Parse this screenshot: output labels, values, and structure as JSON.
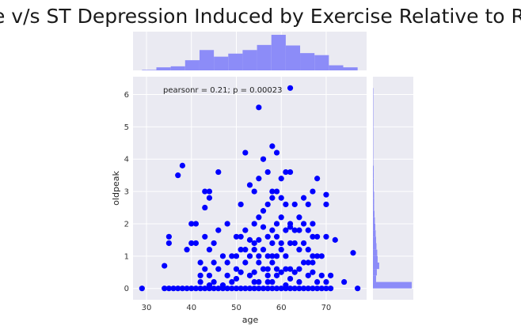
{
  "chart_data": {
    "type": "scatter",
    "title": "Age v/s ST Depression Induced by Exercise Relative to Rest",
    "xlabel": "age",
    "ylabel": "oldpeak",
    "xlim": [
      27,
      79
    ],
    "ylim": [
      -0.35,
      6.55
    ],
    "x_ticks": [
      30,
      40,
      50,
      60,
      70
    ],
    "y_ticks": [
      0,
      1,
      2,
      3,
      4,
      5,
      6
    ],
    "grid": true,
    "annotation": "pearsonr = 0.21; p = 0.00023",
    "colors": {
      "points": "#0000ff",
      "hist_fill": "#8c8cf8",
      "hist_edge": "#6a6af0",
      "panel_bg": "#eaeaf2",
      "grid": "#ffffff"
    },
    "points": [
      [
        29,
        0
      ],
      [
        34,
        0
      ],
      [
        35,
        0
      ],
      [
        36,
        0
      ],
      [
        37,
        0
      ],
      [
        38,
        0
      ],
      [
        39,
        0
      ],
      [
        40,
        0
      ],
      [
        41,
        0
      ],
      [
        42,
        0
      ],
      [
        43,
        0
      ],
      [
        44,
        0
      ],
      [
        45,
        0
      ],
      [
        46,
        0
      ],
      [
        47,
        0
      ],
      [
        48,
        0
      ],
      [
        49,
        0
      ],
      [
        50,
        0
      ],
      [
        51,
        0
      ],
      [
        52,
        0
      ],
      [
        53,
        0
      ],
      [
        54,
        0
      ],
      [
        55,
        0
      ],
      [
        56,
        0
      ],
      [
        57,
        0
      ],
      [
        58,
        0
      ],
      [
        59,
        0
      ],
      [
        60,
        0
      ],
      [
        61,
        0
      ],
      [
        62,
        0
      ],
      [
        63,
        0
      ],
      [
        64,
        0
      ],
      [
        65,
        0
      ],
      [
        66,
        0
      ],
      [
        67,
        0
      ],
      [
        68,
        0
      ],
      [
        69,
        0
      ],
      [
        70,
        0
      ],
      [
        71,
        0
      ],
      [
        74,
        0.2
      ],
      [
        77,
        0
      ],
      [
        34,
        0.7
      ],
      [
        35,
        1.4
      ],
      [
        35,
        1.6
      ],
      [
        37,
        3.5
      ],
      [
        38,
        3.8
      ],
      [
        39,
        1.2
      ],
      [
        40,
        2
      ],
      [
        40,
        1.4
      ],
      [
        41,
        2
      ],
      [
        41,
        1.4
      ],
      [
        42,
        0.8
      ],
      [
        42,
        0.4
      ],
      [
        42,
        0.2
      ],
      [
        43,
        3
      ],
      [
        43,
        2.5
      ],
      [
        43,
        1.6
      ],
      [
        43,
        0.6
      ],
      [
        44,
        2.8
      ],
      [
        44,
        3
      ],
      [
        44,
        1.2
      ],
      [
        44,
        0.4
      ],
      [
        44,
        0.1
      ],
      [
        45,
        1.4
      ],
      [
        45,
        0.8
      ],
      [
        45,
        0.2
      ],
      [
        46,
        3.6
      ],
      [
        46,
        1.8
      ],
      [
        46,
        0.6
      ],
      [
        47,
        1
      ],
      [
        47,
        0.1
      ],
      [
        48,
        2
      ],
      [
        48,
        0.8
      ],
      [
        48,
        0.4
      ],
      [
        49,
        1
      ],
      [
        49,
        0.2
      ],
      [
        50,
        1.6
      ],
      [
        50,
        1
      ],
      [
        50,
        0.6
      ],
      [
        50,
        0.3
      ],
      [
        51,
        2.6
      ],
      [
        51,
        1.6
      ],
      [
        51,
        1.2
      ],
      [
        51,
        0.5
      ],
      [
        52,
        4.2
      ],
      [
        52,
        1.8
      ],
      [
        52,
        1.2
      ],
      [
        52,
        0.8
      ],
      [
        53,
        3.2
      ],
      [
        53,
        1.5
      ],
      [
        53,
        1
      ],
      [
        53,
        0.4
      ],
      [
        54,
        3
      ],
      [
        54,
        2
      ],
      [
        54,
        1.4
      ],
      [
        54,
        1.2
      ],
      [
        54,
        0.5
      ],
      [
        54,
        0.2
      ],
      [
        55,
        5.6
      ],
      [
        55,
        3.4
      ],
      [
        55,
        2.2
      ],
      [
        55,
        1.5
      ],
      [
        55,
        1
      ],
      [
        55,
        0.8
      ],
      [
        55,
        0.2
      ],
      [
        56,
        4
      ],
      [
        56,
        2.4
      ],
      [
        56,
        1.9
      ],
      [
        56,
        1.2
      ],
      [
        56,
        0.6
      ],
      [
        57,
        3.6
      ],
      [
        57,
        2.6
      ],
      [
        57,
        1.6
      ],
      [
        57,
        1
      ],
      [
        57,
        0.6
      ],
      [
        57,
        0.4
      ],
      [
        57,
        0.2
      ],
      [
        58,
        4.4
      ],
      [
        58,
        3
      ],
      [
        58,
        2.8
      ],
      [
        58,
        1.8
      ],
      [
        58,
        1.4
      ],
      [
        58,
        1
      ],
      [
        58,
        0.8
      ],
      [
        58,
        0.2
      ],
      [
        59,
        4.2
      ],
      [
        59,
        3
      ],
      [
        59,
        2
      ],
      [
        59,
        1.6
      ],
      [
        59,
        1
      ],
      [
        59,
        0.6
      ],
      [
        59,
        0.4
      ],
      [
        60,
        3.4
      ],
      [
        60,
        2.8
      ],
      [
        60,
        2.2
      ],
      [
        60,
        1.4
      ],
      [
        60,
        1.2
      ],
      [
        60,
        0.5
      ],
      [
        61,
        3.6
      ],
      [
        61,
        2.6
      ],
      [
        61,
        1.8
      ],
      [
        61,
        1
      ],
      [
        61,
        0.6
      ],
      [
        61,
        0.1
      ],
      [
        62,
        6.2
      ],
      [
        62,
        3.6
      ],
      [
        62,
        2
      ],
      [
        62,
        1.9
      ],
      [
        62,
        1.4
      ],
      [
        62,
        0.6
      ],
      [
        62,
        0.3
      ],
      [
        63,
        2.6
      ],
      [
        63,
        1.8
      ],
      [
        63,
        1.4
      ],
      [
        63,
        0.5
      ],
      [
        64,
        2.2
      ],
      [
        64,
        1.8
      ],
      [
        64,
        1.2
      ],
      [
        64,
        0.6
      ],
      [
        64,
        0.2
      ],
      [
        65,
        2.8
      ],
      [
        65,
        2
      ],
      [
        65,
        1.4
      ],
      [
        65,
        0.8
      ],
      [
        66,
        2.6
      ],
      [
        66,
        1.8
      ],
      [
        66,
        1.2
      ],
      [
        66,
        0.8
      ],
      [
        66,
        0.4
      ],
      [
        67,
        3
      ],
      [
        67,
        2
      ],
      [
        67,
        1.6
      ],
      [
        67,
        1
      ],
      [
        67,
        0.8
      ],
      [
        67,
        0.5
      ],
      [
        68,
        3.4
      ],
      [
        68,
        1.6
      ],
      [
        68,
        1
      ],
      [
        68,
        0.2
      ],
      [
        69,
        1
      ],
      [
        69,
        0.4
      ],
      [
        70,
        2.9
      ],
      [
        70,
        2.6
      ],
      [
        70,
        1.6
      ],
      [
        70,
        0.2
      ],
      [
        71,
        0.4
      ],
      [
        72,
        1.5
      ],
      [
        76,
        1.1
      ]
    ],
    "marginal_x": {
      "bin_edges": [
        29,
        32.2,
        35.4,
        38.6,
        41.8,
        45,
        48.2,
        51.4,
        54.6,
        57.8,
        61,
        64.2,
        67.4,
        70.6,
        73.8,
        77
      ],
      "counts": [
        1,
        6,
        8,
        20,
        40,
        27,
        33,
        40,
        50,
        70,
        49,
        34,
        30,
        10,
        6
      ]
    },
    "marginal_y": {
      "bin_edges": [
        0,
        0.2,
        0.4,
        0.6,
        0.8,
        1.0,
        1.2,
        1.4,
        1.6,
        1.8,
        2.0,
        2.2,
        2.4,
        2.6,
        2.8,
        3.0,
        3.2,
        3.4,
        3.6,
        3.8,
        4.0,
        4.2,
        4.4,
        6.2
      ],
      "counts": [
        99,
        8,
        10,
        16,
        12,
        11,
        9,
        8,
        7,
        6,
        5,
        4,
        3,
        3,
        3,
        2,
        2,
        2,
        2,
        1,
        1,
        1,
        1
      ]
    }
  }
}
